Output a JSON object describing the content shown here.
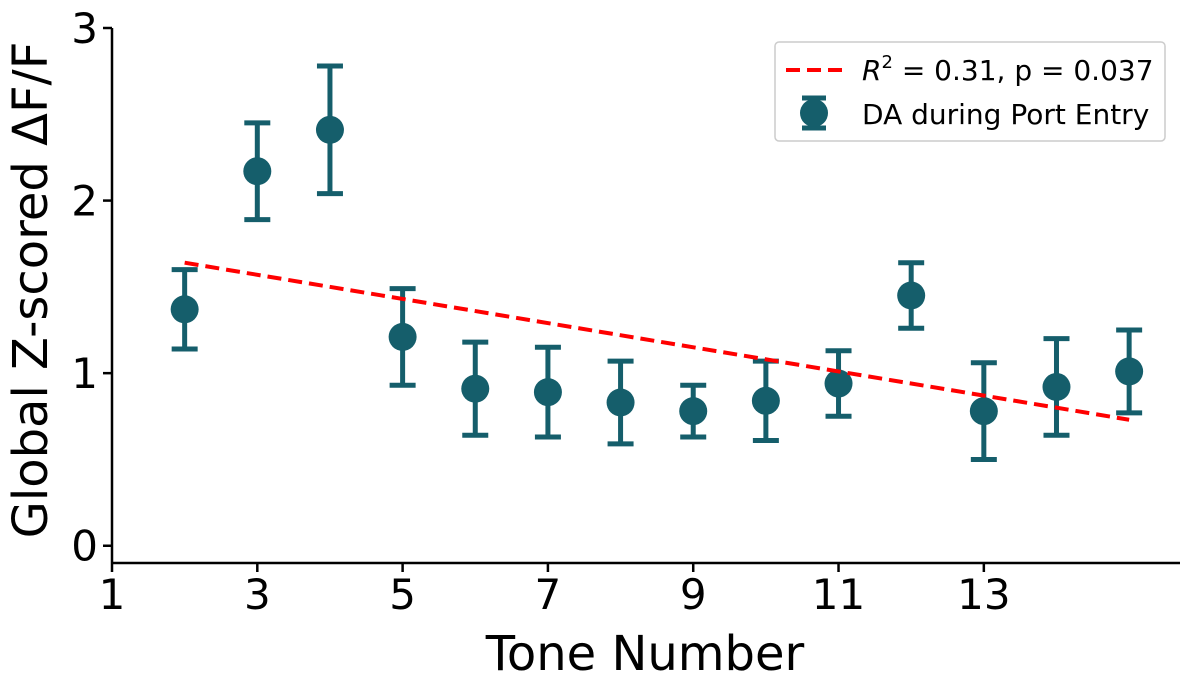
{
  "chart_data": {
    "type": "scatter",
    "xlabel": "Tone Number",
    "ylabel": "Global Z-scored ΔF/F",
    "xlim": [
      1,
      15.7
    ],
    "ylim": [
      -0.1,
      3
    ],
    "x_ticks": [
      1,
      3,
      5,
      7,
      9,
      11,
      13
    ],
    "y_ticks": [
      0,
      1,
      2,
      3
    ],
    "grid": false,
    "legend_position": "top-right",
    "series": [
      {
        "name": "DA during Port Entry",
        "kind": "errorbar",
        "color": "#155e6b",
        "x": [
          2,
          3,
          4,
          5,
          6,
          7,
          8,
          9,
          10,
          11,
          12,
          13,
          14,
          15
        ],
        "y": [
          1.37,
          2.17,
          2.41,
          1.21,
          0.91,
          0.89,
          0.83,
          0.78,
          0.84,
          0.94,
          1.45,
          0.78,
          0.92,
          1.01
        ],
        "err": [
          0.23,
          0.28,
          0.37,
          0.28,
          0.27,
          0.26,
          0.24,
          0.15,
          0.23,
          0.19,
          0.19,
          0.28,
          0.28,
          0.24
        ]
      },
      {
        "name": "R² = 0.31, p = 0.037",
        "kind": "fit",
        "color": "#ff0000",
        "x": [
          2,
          15
        ],
        "y": [
          1.64,
          0.73
        ]
      }
    ],
    "legend": {
      "fit_label_base": "R",
      "fit_label_sup": "2",
      "fit_label_rest": " = 0.31, p = 0.037",
      "data_label": "DA during Port Entry"
    }
  }
}
